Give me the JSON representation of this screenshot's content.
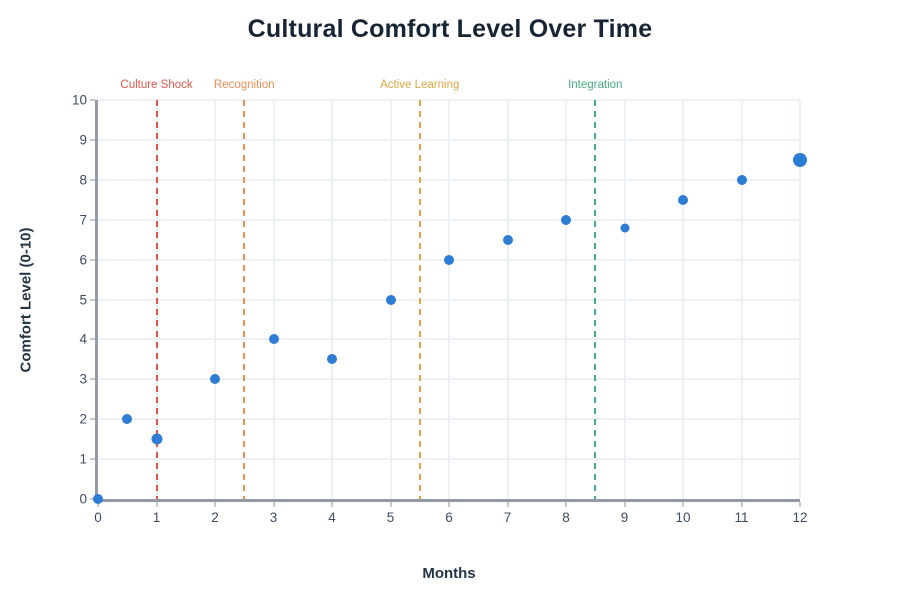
{
  "chart_data": {
    "type": "scatter",
    "title": "Cultural Comfort Level Over Time",
    "xlabel": "Months",
    "ylabel": "Comfort Level (0-10)",
    "xlim": [
      0,
      12
    ],
    "ylim": [
      0,
      10
    ],
    "x_ticks": [
      0,
      1,
      2,
      3,
      4,
      5,
      6,
      7,
      8,
      9,
      10,
      11,
      12
    ],
    "y_ticks": [
      0,
      1,
      2,
      3,
      4,
      5,
      6,
      7,
      8,
      9,
      10
    ],
    "grid": true,
    "legend": "none",
    "points": [
      {
        "x": 0,
        "y": 0,
        "size": 10
      },
      {
        "x": 0.5,
        "y": 2,
        "size": 10
      },
      {
        "x": 1,
        "y": 1.5,
        "size": 11
      },
      {
        "x": 2,
        "y": 3,
        "size": 10
      },
      {
        "x": 3,
        "y": 4,
        "size": 10
      },
      {
        "x": 4,
        "y": 3.5,
        "size": 10
      },
      {
        "x": 5,
        "y": 5,
        "size": 10
      },
      {
        "x": 6,
        "y": 6,
        "size": 10
      },
      {
        "x": 7,
        "y": 6.5,
        "size": 10
      },
      {
        "x": 8,
        "y": 7,
        "size": 10
      },
      {
        "x": 9,
        "y": 6.8,
        "size": 9
      },
      {
        "x": 10,
        "y": 7.5,
        "size": 10
      },
      {
        "x": 11,
        "y": 8,
        "size": 10
      },
      {
        "x": 12,
        "y": 8.5,
        "size": 14
      }
    ],
    "annotations": [
      {
        "label": "Culture Shock",
        "x": 1,
        "color": "#e2564b"
      },
      {
        "label": "Recognition",
        "x": 2.5,
        "color": "#ee8e52"
      },
      {
        "label": "Active Learning",
        "x": 5.5,
        "color": "#dfa643"
      },
      {
        "label": "Integration",
        "x": 8.5,
        "color": "#46ae7d"
      }
    ],
    "colors": {
      "point": "#2e7cd3",
      "axis_line": "#939aa4",
      "gridline": "#edf0f5",
      "tick_mark": "#c3c8d0",
      "tick_label": "#3e4c60",
      "title": "#172433",
      "axis_title": "#243546",
      "background": "#ffffff"
    }
  }
}
